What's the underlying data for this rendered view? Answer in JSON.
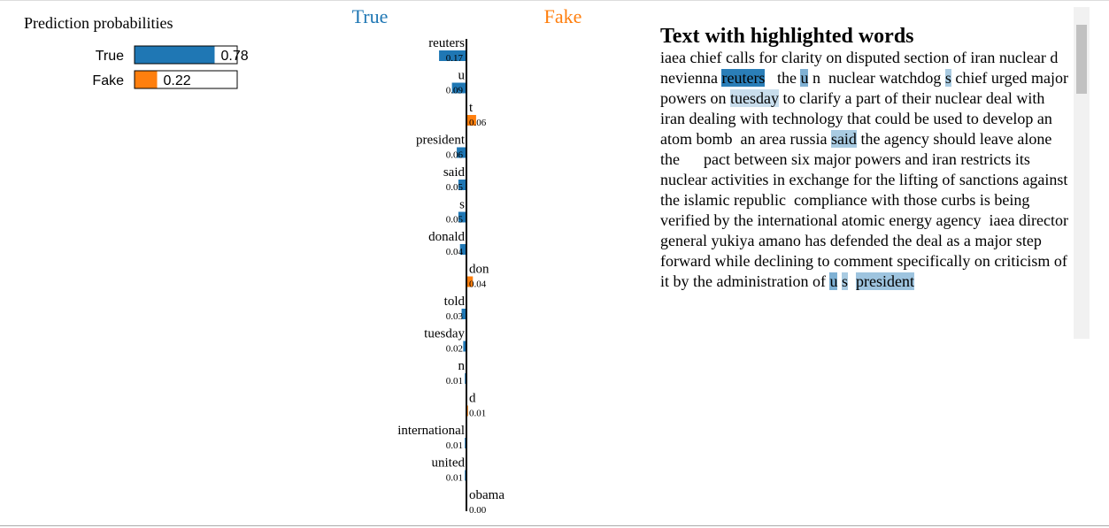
{
  "prediction_probabilities": {
    "title": "Prediction probabilities",
    "categories": [
      "True",
      "Fake"
    ],
    "values": [
      0.78,
      0.22
    ],
    "colors": [
      "#1f77b4",
      "#ff7f0e"
    ]
  },
  "feature_weights": {
    "class_labels": [
      "True",
      "Fake"
    ],
    "class_colors": [
      "#1f77b4",
      "#ff7f0e"
    ],
    "features": [
      {
        "word": "reuters",
        "value": 0.17,
        "value_label": "0.17",
        "class": "True"
      },
      {
        "word": "u",
        "value": 0.09,
        "value_label": "0.09",
        "class": "True"
      },
      {
        "word": "t",
        "value": 0.06,
        "value_label": "0.06",
        "class": "Fake"
      },
      {
        "word": "president",
        "value": 0.06,
        "value_label": "0.06",
        "class": "True"
      },
      {
        "word": "said",
        "value": 0.05,
        "value_label": "0.05",
        "class": "True"
      },
      {
        "word": "s",
        "value": 0.05,
        "value_label": "0.05",
        "class": "True"
      },
      {
        "word": "donald",
        "value": 0.04,
        "value_label": "0.04",
        "class": "True"
      },
      {
        "word": "don",
        "value": 0.04,
        "value_label": "0.04",
        "class": "Fake"
      },
      {
        "word": "told",
        "value": 0.03,
        "value_label": "0.03",
        "class": "True"
      },
      {
        "word": "tuesday",
        "value": 0.02,
        "value_label": "0.02",
        "class": "True"
      },
      {
        "word": "n",
        "value": 0.01,
        "value_label": "0.01",
        "class": "True"
      },
      {
        "word": "d",
        "value": 0.01,
        "value_label": "0.01",
        "class": "Fake"
      },
      {
        "word": "international",
        "value": 0.01,
        "value_label": "0.01",
        "class": "True"
      },
      {
        "word": "united",
        "value": 0.01,
        "value_label": "0.01",
        "class": "True"
      },
      {
        "word": "obama",
        "value": 0,
        "value_label": "0.00",
        "class": "Fake"
      }
    ]
  },
  "text_panel": {
    "title": "Text with highlighted words",
    "segments": [
      "iaea chief calls for clarity on disputed section of iran nuclear d nevienna ",
      "reuters",
      "   the ",
      "u",
      " n  nuclear watchdog ",
      "s",
      " chief urged major powers on ",
      "tuesday",
      " to clarify a part of their nuclear deal with iran dealing with technology that could be used to develop an atom bomb  an area russia ",
      "said",
      " the agency should leave alone  the      pact between six major powers and iran restricts its nuclear activities in exchange for the lifting of sanctions against the islamic republic  compliance with those curbs is being verified by the international atomic energy agency  iaea director general yukiya amano has defended the deal as a major step forward while declining to comment specifically on criticism of it by the administration of ",
      "u",
      " ",
      "s",
      "  ",
      "president"
    ]
  }
}
